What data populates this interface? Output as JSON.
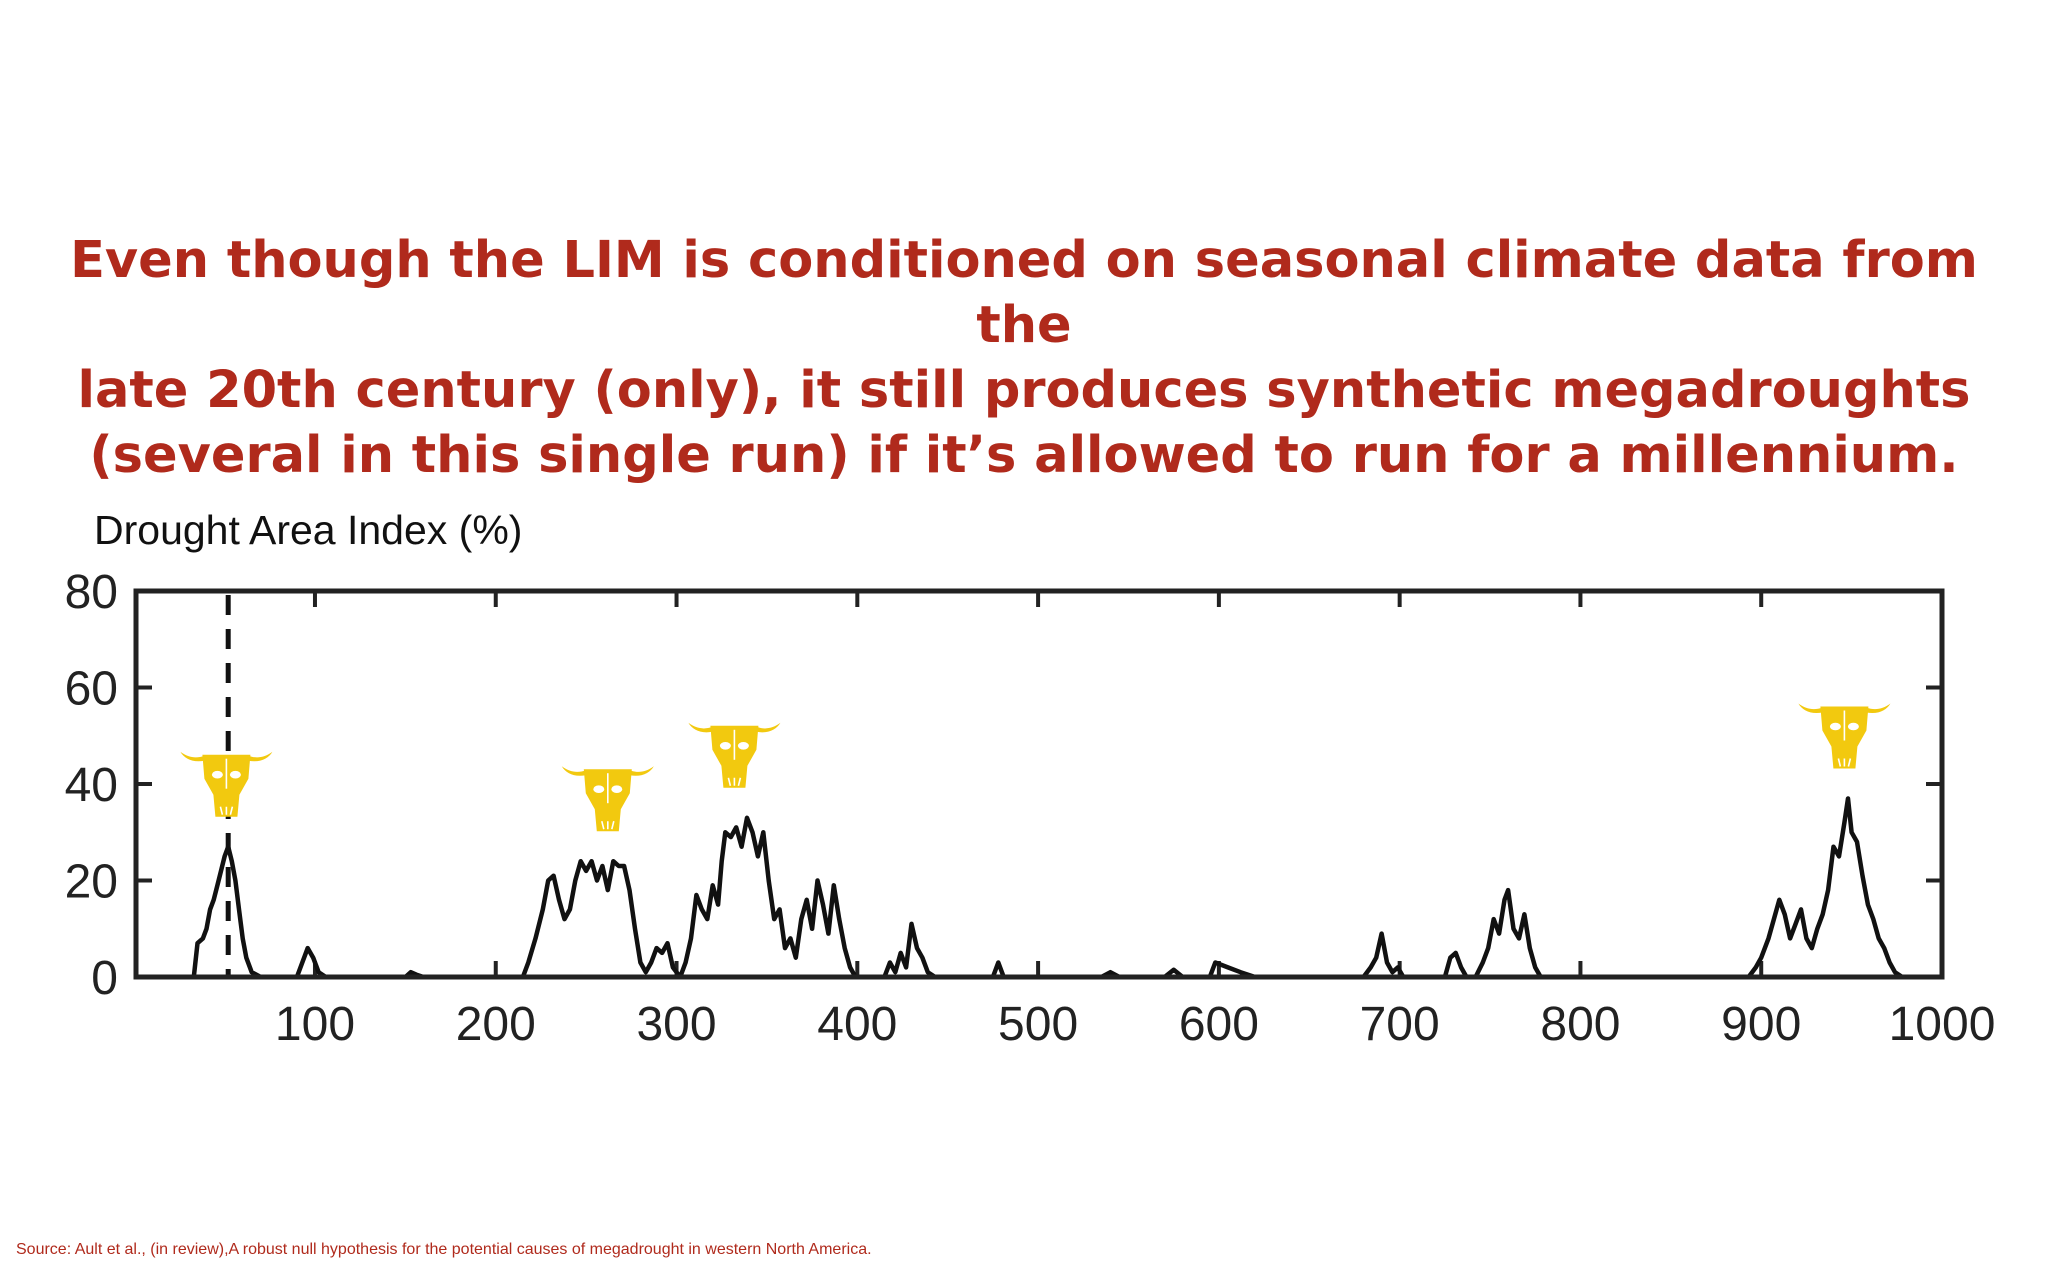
{
  "headline": {
    "lines": [
      "Even though the LIM is conditioned on seasonal climate data from the",
      "late 20th century (only), it still produces synthetic megadroughts",
      "(several in this single run) if it’s allowed to run for a millennium."
    ]
  },
  "source_note": "Source: Ault et al., (in review),A robust null hypothesis for the potential causes of megadrought in western North America.",
  "colors": {
    "headline": "#b02a1c",
    "line": "#111111",
    "marker_icon": "#f2c90f"
  },
  "chart_data": {
    "type": "line",
    "title": "",
    "xlabel": "",
    "ylabel": "Drought Area Index (%)",
    "xlim": [
      1,
      1000
    ],
    "ylim": [
      0,
      80
    ],
    "x_ticks": [
      100,
      200,
      300,
      400,
      500,
      600,
      700,
      800,
      900,
      1000
    ],
    "y_ticks": [
      0,
      20,
      40,
      60,
      80
    ],
    "grid": false,
    "legend": "none",
    "reference_line": {
      "x": 52,
      "style": "dashed"
    },
    "marker_icons": {
      "icon": "cow-skull-icon",
      "x": [
        51,
        262,
        332,
        946
      ]
    },
    "series": [
      {
        "points": [
          [
            0,
            0
          ],
          [
            33,
            0
          ],
          [
            35,
            7
          ],
          [
            38,
            8
          ],
          [
            40,
            10
          ],
          [
            42,
            14
          ],
          [
            44,
            16
          ],
          [
            46,
            19
          ],
          [
            48,
            22
          ],
          [
            50,
            25
          ],
          [
            52,
            27
          ],
          [
            54,
            24
          ],
          [
            56,
            20
          ],
          [
            58,
            14
          ],
          [
            60,
            8
          ],
          [
            62,
            4
          ],
          [
            65,
            1
          ],
          [
            70,
            0
          ],
          [
            90,
            0
          ],
          [
            93,
            3
          ],
          [
            96,
            6
          ],
          [
            99,
            4
          ],
          [
            102,
            1
          ],
          [
            106,
            0
          ],
          [
            150,
            0
          ],
          [
            153,
            1
          ],
          [
            156,
            0.5
          ],
          [
            160,
            0
          ],
          [
            215,
            0
          ],
          [
            218,
            3
          ],
          [
            222,
            8
          ],
          [
            226,
            14
          ],
          [
            229,
            20
          ],
          [
            232,
            21
          ],
          [
            235,
            16
          ],
          [
            238,
            12
          ],
          [
            241,
            14
          ],
          [
            244,
            20
          ],
          [
            247,
            24
          ],
          [
            250,
            22
          ],
          [
            253,
            24
          ],
          [
            256,
            20
          ],
          [
            259,
            23
          ],
          [
            262,
            18
          ],
          [
            265,
            24
          ],
          [
            268,
            23
          ],
          [
            271,
            23
          ],
          [
            274,
            18
          ],
          [
            277,
            10
          ],
          [
            280,
            3
          ],
          [
            283,
            1
          ],
          [
            286,
            3
          ],
          [
            289,
            6
          ],
          [
            292,
            5
          ],
          [
            295,
            7
          ],
          [
            298,
            2
          ],
          [
            302,
            0
          ],
          [
            305,
            3
          ],
          [
            308,
            8
          ],
          [
            311,
            17
          ],
          [
            314,
            14
          ],
          [
            317,
            12
          ],
          [
            320,
            19
          ],
          [
            323,
            15
          ],
          [
            325,
            24
          ],
          [
            327,
            30
          ],
          [
            330,
            29
          ],
          [
            333,
            31
          ],
          [
            336,
            27
          ],
          [
            339,
            33
          ],
          [
            342,
            30
          ],
          [
            345,
            25
          ],
          [
            348,
            30
          ],
          [
            351,
            20
          ],
          [
            354,
            12
          ],
          [
            357,
            14
          ],
          [
            360,
            6
          ],
          [
            363,
            8
          ],
          [
            366,
            4
          ],
          [
            369,
            12
          ],
          [
            372,
            16
          ],
          [
            375,
            10
          ],
          [
            378,
            20
          ],
          [
            381,
            15
          ],
          [
            384,
            9
          ],
          [
            387,
            19
          ],
          [
            390,
            12
          ],
          [
            393,
            6
          ],
          [
            396,
            2
          ],
          [
            399,
            0
          ],
          [
            415,
            0
          ],
          [
            418,
            3
          ],
          [
            421,
            1
          ],
          [
            424,
            5
          ],
          [
            427,
            2
          ],
          [
            430,
            11
          ],
          [
            433,
            6
          ],
          [
            436,
            4
          ],
          [
            439,
            1
          ],
          [
            443,
            0
          ],
          [
            475,
            0
          ],
          [
            478,
            3
          ],
          [
            481,
            0
          ],
          [
            535,
            0
          ],
          [
            540,
            1
          ],
          [
            545,
            0
          ],
          [
            570,
            0
          ],
          [
            575,
            1.5
          ],
          [
            580,
            0
          ],
          [
            595,
            0
          ],
          [
            598,
            3
          ],
          [
            605,
            2
          ],
          [
            612,
            1
          ],
          [
            620,
            0
          ],
          [
            680,
            0
          ],
          [
            684,
            2
          ],
          [
            687,
            4
          ],
          [
            690,
            9
          ],
          [
            693,
            3
          ],
          [
            696,
            1
          ],
          [
            699,
            2
          ],
          [
            702,
            0
          ],
          [
            725,
            0
          ],
          [
            728,
            4
          ],
          [
            731,
            5
          ],
          [
            734,
            2
          ],
          [
            737,
            0
          ],
          [
            742,
            0
          ],
          [
            746,
            3
          ],
          [
            749,
            6
          ],
          [
            752,
            12
          ],
          [
            755,
            9
          ],
          [
            758,
            16
          ],
          [
            760,
            18
          ],
          [
            763,
            10
          ],
          [
            766,
            8
          ],
          [
            769,
            13
          ],
          [
            772,
            6
          ],
          [
            775,
            2
          ],
          [
            778,
            0
          ],
          [
            893,
            0
          ],
          [
            897,
            2
          ],
          [
            900,
            4
          ],
          [
            904,
            8
          ],
          [
            907,
            12
          ],
          [
            910,
            16
          ],
          [
            913,
            13
          ],
          [
            916,
            8
          ],
          [
            919,
            11
          ],
          [
            922,
            14
          ],
          [
            925,
            8
          ],
          [
            928,
            6
          ],
          [
            931,
            10
          ],
          [
            934,
            13
          ],
          [
            937,
            18
          ],
          [
            940,
            27
          ],
          [
            943,
            25
          ],
          [
            946,
            32
          ],
          [
            948,
            37
          ],
          [
            950,
            30
          ],
          [
            953,
            28
          ],
          [
            956,
            21
          ],
          [
            959,
            15
          ],
          [
            962,
            12
          ],
          [
            965,
            8
          ],
          [
            968,
            6
          ],
          [
            971,
            3
          ],
          [
            974,
            1
          ],
          [
            978,
            0
          ]
        ]
      }
    ]
  }
}
